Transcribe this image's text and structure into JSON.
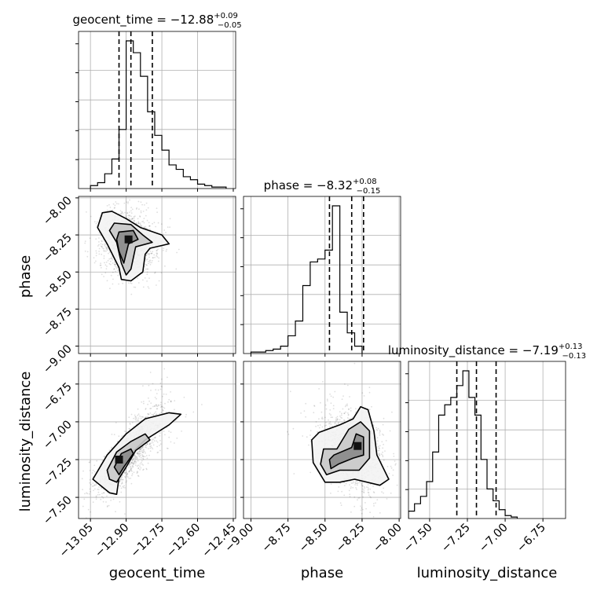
{
  "chart_data": {
    "type": "corner",
    "parameters": [
      "geocent_time",
      "phase",
      "luminosity_distance"
    ],
    "titles": [
      {
        "name": "geocent_time",
        "median": "−12.88",
        "plus": "+0.09",
        "minus": "−0.05"
      },
      {
        "name": "phase",
        "median": "−8.32",
        "plus": "+0.08",
        "minus": "−0.15"
      },
      {
        "name": "luminosity_distance",
        "median": "−7.19",
        "plus": "+0.13",
        "minus": "−0.13"
      }
    ],
    "ranges": {
      "geocent_time": [
        -13.1,
        -12.44
      ],
      "phase": [
        -9.05,
        -7.99
      ],
      "luminosity_distance": [
        -7.64,
        -6.6
      ]
    },
    "ticks": {
      "geocent_time": [
        -13.05,
        -12.9,
        -12.75,
        -12.6,
        -12.45
      ],
      "phase": [
        -9.0,
        -8.75,
        -8.5,
        -8.25,
        -8.0
      ],
      "luminosity_distance": [
        -7.5,
        -7.25,
        -7.0,
        -6.75
      ]
    },
    "tick_labels": {
      "geocent_time": [
        "−13.05",
        "−12.90",
        "−12.75",
        "−12.60",
        "−12.45"
      ],
      "phase": [
        "−9.00",
        "−8.75",
        "−8.50",
        "−8.25",
        "−8.00"
      ],
      "luminosity_distance": [
        "−7.50",
        "−7.25",
        "−7.00",
        "−6.75"
      ]
    },
    "quantiles": {
      "geocent_time": [
        -12.93,
        -12.88,
        -12.79
      ],
      "phase": [
        -8.47,
        -8.32,
        -8.24
      ],
      "luminosity_distance": [
        -7.32,
        -7.19,
        -7.06
      ]
    },
    "histograms": {
      "geocent_time": {
        "edges_start": -13.05,
        "bin_width": 0.03,
        "heights": [
          2,
          4,
          10,
          20,
          40,
          100,
          92,
          76,
          52,
          36,
          26,
          16,
          13,
          8,
          6,
          3,
          2,
          1,
          1
        ]
      },
      "phase": {
        "edges_start": -9.0,
        "bin_width": 0.05,
        "heights": [
          1,
          1,
          2,
          3,
          5,
          12,
          22,
          46,
          62,
          64,
          70,
          100,
          28,
          14,
          5
        ]
      },
      "luminosity_distance": {
        "edges_start": -7.64,
        "bin_width": 0.04,
        "heights": [
          5,
          10,
          15,
          25,
          45,
          70,
          77,
          82,
          90,
          100,
          82,
          70,
          40,
          20,
          12,
          6,
          2,
          1
        ]
      }
    },
    "contours_2d": {
      "phase_vs_geocent_time": {
        "levels": [
          [
            [
              -13.0,
              -8.1
            ],
            [
              -12.96,
              -8.09
            ],
            [
              -12.9,
              -8.14
            ],
            [
              -12.84,
              -8.2
            ],
            [
              -12.75,
              -8.25
            ],
            [
              -12.72,
              -8.31
            ],
            [
              -12.8,
              -8.34
            ],
            [
              -12.82,
              -8.38
            ],
            [
              -12.83,
              -8.5
            ],
            [
              -12.88,
              -8.56
            ],
            [
              -12.92,
              -8.55
            ],
            [
              -12.93,
              -8.47
            ],
            [
              -12.98,
              -8.31
            ],
            [
              -13.02,
              -8.2
            ]
          ],
          [
            [
              -12.95,
              -8.17
            ],
            [
              -12.88,
              -8.18
            ],
            [
              -12.83,
              -8.25
            ],
            [
              -12.79,
              -8.3
            ],
            [
              -12.86,
              -8.33
            ],
            [
              -12.88,
              -8.48
            ],
            [
              -12.9,
              -8.52
            ],
            [
              -12.92,
              -8.44
            ],
            [
              -12.94,
              -8.3
            ],
            [
              -12.97,
              -8.22
            ]
          ],
          [
            [
              -12.93,
              -8.23
            ],
            [
              -12.87,
              -8.22
            ],
            [
              -12.85,
              -8.28
            ],
            [
              -12.89,
              -8.31
            ],
            [
              -12.91,
              -8.44
            ],
            [
              -12.93,
              -8.36
            ],
            [
              -12.94,
              -8.28
            ]
          ]
        ],
        "peak": [
          -12.89,
          -8.28
        ]
      },
      "luminosity_distance_vs_geocent_time": {
        "levels": [
          [
            [
              -13.04,
              -7.38
            ],
            [
              -12.98,
              -7.22
            ],
            [
              -12.9,
              -7.08
            ],
            [
              -12.82,
              -6.98
            ],
            [
              -12.72,
              -6.94
            ],
            [
              -12.67,
              -6.95
            ],
            [
              -12.72,
              -7.02
            ],
            [
              -12.82,
              -7.12
            ],
            [
              -12.9,
              -7.24
            ],
            [
              -12.93,
              -7.37
            ],
            [
              -12.94,
              -7.48
            ],
            [
              -12.97,
              -7.47
            ]
          ],
          [
            [
              -12.98,
              -7.32
            ],
            [
              -12.94,
              -7.2
            ],
            [
              -12.88,
              -7.13
            ],
            [
              -12.82,
              -7.08
            ],
            [
              -12.8,
              -7.12
            ],
            [
              -12.86,
              -7.19
            ],
            [
              -12.9,
              -7.3
            ],
            [
              -12.94,
              -7.4
            ],
            [
              -12.97,
              -7.38
            ]
          ],
          [
            [
              -12.95,
              -7.3
            ],
            [
              -12.92,
              -7.21
            ],
            [
              -12.88,
              -7.18
            ],
            [
              -12.87,
              -7.21
            ],
            [
              -12.91,
              -7.3
            ],
            [
              -12.93,
              -7.35
            ]
          ]
        ],
        "peak": [
          -12.93,
          -7.25
        ]
      },
      "luminosity_distance_vs_phase": {
        "levels": [
          [
            [
              -8.59,
              -7.12
            ],
            [
              -8.54,
              -7.07
            ],
            [
              -8.4,
              -7.02
            ],
            [
              -8.31,
              -6.98
            ],
            [
              -8.26,
              -6.9
            ],
            [
              -8.21,
              -6.92
            ],
            [
              -8.17,
              -7.06
            ],
            [
              -8.15,
              -7.22
            ],
            [
              -8.07,
              -7.38
            ],
            [
              -8.13,
              -7.42
            ],
            [
              -8.3,
              -7.38
            ],
            [
              -8.4,
              -7.4
            ],
            [
              -8.5,
              -7.4
            ],
            [
              -8.58,
              -7.27
            ]
          ],
          [
            [
              -8.51,
              -7.18
            ],
            [
              -8.42,
              -7.18
            ],
            [
              -8.34,
              -7.05
            ],
            [
              -8.26,
              -7.0
            ],
            [
              -8.2,
              -7.06
            ],
            [
              -8.2,
              -7.24
            ],
            [
              -8.27,
              -7.32
            ],
            [
              -8.4,
              -7.32
            ],
            [
              -8.49,
              -7.35
            ],
            [
              -8.53,
              -7.28
            ]
          ],
          [
            [
              -8.47,
              -7.25
            ],
            [
              -8.44,
              -7.22
            ],
            [
              -8.32,
              -7.17
            ],
            [
              -8.29,
              -7.08
            ],
            [
              -8.24,
              -7.1
            ],
            [
              -8.24,
              -7.22
            ],
            [
              -8.31,
              -7.24
            ],
            [
              -8.41,
              -7.28
            ],
            [
              -8.46,
              -7.31
            ]
          ]
        ],
        "peak": [
          -8.28,
          -7.16
        ]
      }
    }
  }
}
